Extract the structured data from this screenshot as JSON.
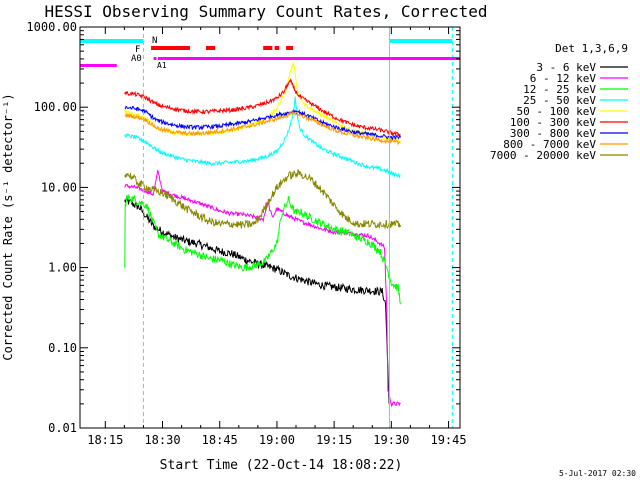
{
  "chart_data": {
    "type": "line",
    "title": "HESSI Observing Summary Count Rates, Corrected",
    "xlabel": "Start Time (22-Oct-14 18:08:22)",
    "ylabel": "Corrected Count Rate (s⁻¹ detector⁻¹)",
    "ylog": true,
    "ylim": [
      0.01,
      1000
    ],
    "xlim": [
      18.1394,
      19.8
    ],
    "x_ticks": [
      {
        "t": 18.25,
        "label": "18:15"
      },
      {
        "t": 18.5,
        "label": "18:30"
      },
      {
        "t": 18.75,
        "label": "18:45"
      },
      {
        "t": 19.0,
        "label": "19:00"
      },
      {
        "t": 19.25,
        "label": "19:15"
      },
      {
        "t": 19.5,
        "label": "19:30"
      },
      {
        "t": 19.75,
        "label": "19:45"
      }
    ],
    "y_ticks": [
      {
        "v": 0.01,
        "label": "0.01"
      },
      {
        "v": 0.1,
        "label": "0.10"
      },
      {
        "v": 1,
        "label": "1.00"
      },
      {
        "v": 10,
        "label": "10.00"
      },
      {
        "v": 100,
        "label": "100.00"
      },
      {
        "v": 1000,
        "label": "1000.00"
      }
    ],
    "legend_title": "Det 1,3,6,9",
    "legend_position": "right",
    "grid": false,
    "series": [
      {
        "name": "3 - 6 keV",
        "color": "#000000",
        "x": [
          18.335,
          18.36,
          18.4,
          18.46,
          18.5,
          18.55,
          18.6,
          18.65,
          18.7,
          18.75,
          18.8,
          18.85,
          18.9,
          18.95,
          19.0,
          19.05,
          19.1,
          19.15,
          19.2,
          19.25,
          19.3,
          19.35,
          19.4,
          19.46,
          19.475,
          19.49
        ],
        "y": [
          6.8,
          6.5,
          5.6,
          3.3,
          2.8,
          2.4,
          2.15,
          2.0,
          1.8,
          1.6,
          1.5,
          1.3,
          1.15,
          1.05,
          0.95,
          0.8,
          0.72,
          0.65,
          0.6,
          0.57,
          0.55,
          0.53,
          0.52,
          0.5,
          0.35,
          0.02
        ]
      },
      {
        "name": "6 - 12 keV",
        "color": "#ff00ff",
        "x": [
          18.335,
          18.38,
          18.42,
          18.46,
          18.48,
          18.5,
          18.55,
          18.6,
          18.65,
          18.7,
          18.75,
          18.8,
          18.85,
          18.9,
          18.94,
          18.96,
          18.98,
          19.0,
          19.05,
          19.1,
          19.15,
          19.2,
          19.25,
          19.3,
          19.35,
          19.4,
          19.45,
          19.47,
          19.48,
          19.485,
          19.5,
          19.54
        ],
        "y": [
          10.5,
          10,
          9.2,
          8.2,
          16,
          9,
          8,
          7.2,
          6.5,
          5.8,
          5.1,
          4.7,
          4.6,
          4.3,
          4.0,
          6.5,
          4.2,
          5.4,
          4.4,
          3.8,
          3.4,
          3.0,
          2.8,
          2.7,
          2.6,
          2.5,
          2.0,
          1.8,
          0.3,
          0.03,
          0.02,
          0.02
        ]
      },
      {
        "name": "12 - 25 keV",
        "color": "#00ff00",
        "x": [
          18.335,
          18.337,
          18.345,
          18.38,
          18.43,
          18.48,
          18.55,
          18.6,
          18.65,
          18.7,
          18.75,
          18.8,
          18.85,
          18.9,
          18.95,
          19.0,
          19.02,
          19.05,
          19.08,
          19.1,
          19.15,
          19.2,
          19.25,
          19.3,
          19.35,
          19.4,
          19.45,
          19.48,
          19.5,
          19.53,
          19.54
        ],
        "y": [
          1.0,
          6.0,
          7.5,
          7.0,
          6.0,
          2.6,
          2.0,
          1.65,
          1.5,
          1.3,
          1.25,
          1.1,
          1.0,
          1.05,
          1.2,
          2.0,
          4.5,
          7.0,
          4.8,
          5.0,
          4.1,
          3.5,
          3.0,
          2.8,
          2.4,
          2.1,
          1.6,
          1.0,
          0.65,
          0.55,
          0.35
        ]
      },
      {
        "name": "25 - 50 keV",
        "color": "#00ffff",
        "x": [
          18.335,
          18.38,
          18.42,
          18.47,
          18.5,
          18.55,
          18.6,
          18.65,
          18.7,
          18.75,
          18.8,
          18.85,
          18.9,
          18.95,
          19.0,
          19.03,
          19.05,
          19.07,
          19.08,
          19.09,
          19.1,
          19.12,
          19.15,
          19.2,
          19.25,
          19.3,
          19.35,
          19.4,
          19.45,
          19.48,
          19.5,
          19.54
        ],
        "y": [
          45,
          42,
          38,
          30,
          27,
          24,
          22,
          21,
          20,
          20,
          20.5,
          21,
          22,
          24,
          28,
          38,
          50,
          80,
          130,
          75,
          55,
          45,
          38,
          30,
          26,
          23,
          20,
          18,
          17,
          16,
          15,
          14
        ]
      },
      {
        "name": "50 - 100 keV",
        "color": "#ffff00",
        "x": [
          18.335,
          18.38,
          18.42,
          18.47,
          18.5,
          18.55,
          18.6,
          18.65,
          18.7,
          18.75,
          18.8,
          18.85,
          18.9,
          18.95,
          19.0,
          19.04,
          19.06,
          19.07,
          19.075,
          19.09,
          19.12,
          19.15,
          19.2,
          19.25,
          19.3,
          19.35,
          19.4,
          19.45,
          19.5,
          19.54
        ],
        "y": [
          88,
          80,
          75,
          58,
          52,
          48,
          46,
          46,
          47,
          49,
          52,
          56,
          62,
          72,
          95,
          160,
          290,
          350,
          320,
          160,
          110,
          95,
          78,
          65,
          55,
          50,
          46,
          42,
          40,
          38
        ]
      },
      {
        "name": "100 - 300 keV",
        "color": "#ff0000",
        "x": [
          18.335,
          18.38,
          18.42,
          18.47,
          18.5,
          18.55,
          18.6,
          18.65,
          18.7,
          18.75,
          18.8,
          18.85,
          18.9,
          18.95,
          19.0,
          19.03,
          19.05,
          19.06,
          19.08,
          19.1,
          19.15,
          19.2,
          19.25,
          19.3,
          19.35,
          19.4,
          19.45,
          19.5,
          19.54
        ],
        "y": [
          150,
          145,
          135,
          110,
          102,
          96,
          90,
          88,
          88,
          90,
          92,
          96,
          102,
          112,
          130,
          155,
          200,
          210,
          160,
          135,
          110,
          90,
          75,
          65,
          58,
          55,
          52,
          48,
          45
        ]
      },
      {
        "name": "300 - 800 keV",
        "color": "#0000ff",
        "x": [
          18.335,
          18.38,
          18.42,
          18.47,
          18.5,
          18.55,
          18.6,
          18.65,
          18.7,
          18.75,
          18.8,
          18.85,
          18.9,
          18.95,
          19.0,
          19.05,
          19.08,
          19.1,
          19.15,
          19.2,
          19.25,
          19.3,
          19.35,
          19.4,
          19.45,
          19.5,
          19.54
        ],
        "y": [
          100,
          96,
          90,
          70,
          65,
          60,
          57,
          56,
          57,
          58,
          61,
          64,
          68,
          74,
          80,
          85,
          90,
          86,
          75,
          64,
          57,
          52,
          48,
          46,
          44,
          42,
          42
        ]
      },
      {
        "name": "800 - 7000 keV",
        "color": "#ff9900",
        "x": [
          18.335,
          18.38,
          18.42,
          18.47,
          18.5,
          18.55,
          18.6,
          18.65,
          18.7,
          18.75,
          18.8,
          18.85,
          18.9,
          18.95,
          19.0,
          19.05,
          19.08,
          19.1,
          19.15,
          19.2,
          19.25,
          19.3,
          19.35,
          19.4,
          19.45,
          19.5,
          19.54
        ],
        "y": [
          80,
          76,
          72,
          56,
          52,
          49,
          47,
          47,
          48,
          50,
          53,
          56,
          60,
          66,
          72,
          80,
          85,
          80,
          70,
          60,
          52,
          47,
          44,
          41,
          39,
          37,
          36
        ]
      },
      {
        "name": "7000 - 20000 keV",
        "color": "#888800",
        "x": [
          18.335,
          18.36,
          18.4,
          18.45,
          18.5,
          18.55,
          18.6,
          18.65,
          18.7,
          18.75,
          18.8,
          18.85,
          18.9,
          18.93,
          18.96,
          19.0,
          19.05,
          19.1,
          19.15,
          19.2,
          19.25,
          19.3,
          19.35,
          19.4,
          19.45,
          19.5,
          19.54
        ],
        "y": [
          15,
          14,
          11,
          9.5,
          8.5,
          7,
          5.5,
          4.6,
          3.8,
          3.5,
          3.5,
          3.4,
          3.5,
          4.5,
          6.5,
          10,
          14,
          15,
          12.5,
          9,
          6,
          4.2,
          3.5,
          3.5,
          3.5,
          3.5,
          3.4
        ]
      }
    ],
    "annotations": {
      "N": "N",
      "F": "F",
      "A0": "A0",
      "A1": "A1",
      "flag_colors": {
        "night": "#00ffff",
        "flare": "#ff0000",
        "attenuator": "#ff00ff"
      }
    },
    "footer_date": "5-Jul-2017 02:30"
  }
}
